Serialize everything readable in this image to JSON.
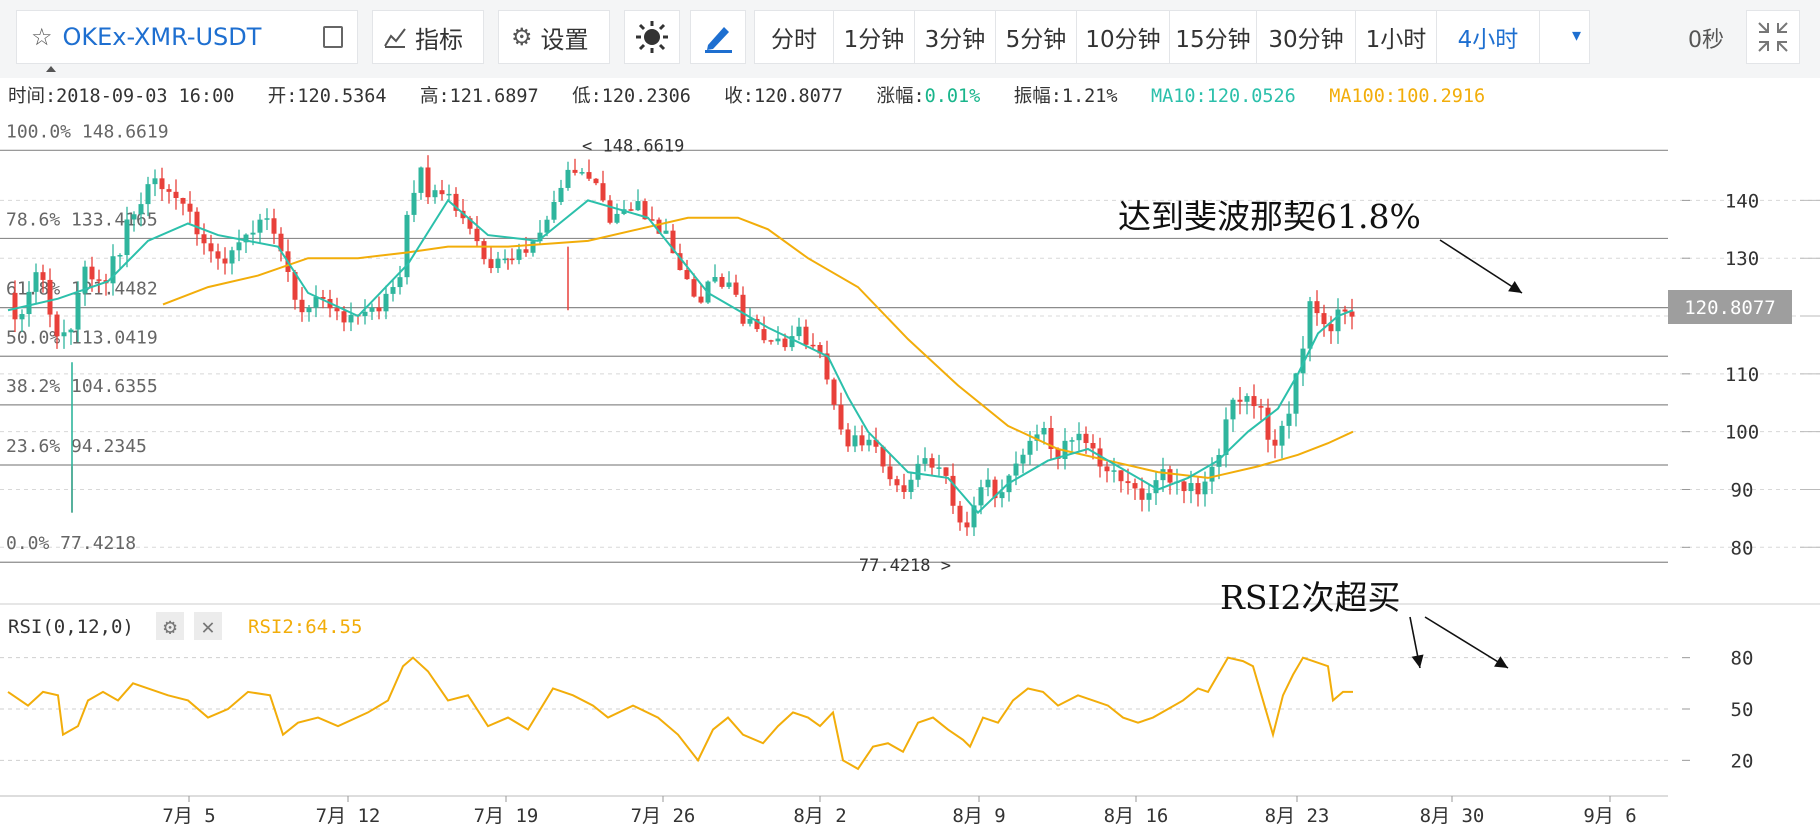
{
  "toolbar": {
    "symbol": "OKEx-XMR-USDT",
    "indicators_label": "指标",
    "settings_label": "设置",
    "intervals": [
      "分时",
      "1分钟",
      "3分钟",
      "5分钟",
      "10分钟",
      "15分钟",
      "30分钟",
      "1小时",
      "4小时"
    ],
    "active_interval": "4小时",
    "countdown": "0秒"
  },
  "info_bar": {
    "time_label": "时间:",
    "time": "2018-09-03 16:00",
    "open_label": "开:",
    "open": "120.5364",
    "high_label": "高:",
    "high": "121.6897",
    "low_label": "低:",
    "low": "120.2306",
    "close_label": "收:",
    "close": "120.8077",
    "change_label": "涨幅:",
    "change": "0.01%",
    "amplitude_label": "振幅:",
    "amplitude": "1.21%",
    "ma10_label": "MA10:",
    "ma10": "120.0526",
    "ma100_label": "MA100:",
    "ma100": "100.2916"
  },
  "rsi_panel": {
    "label": "RSI(0,12,0)",
    "value_label": "RSI2:64.55"
  },
  "colors": {
    "up": "#2fb59d",
    "down": "#e8403a",
    "ma10": "#2cc0ab",
    "ma100": "#f2ad0a",
    "rsi": "#f2ad0a",
    "accent": "#1e6fd0"
  },
  "chart_data": [
    {
      "type": "candlestick",
      "title": "OKEx-XMR-USDT 4小时",
      "x_tick_labels": [
        "7月 5",
        "7月 12",
        "7月 19",
        "7月 26",
        "8月 2",
        "8月 9",
        "8月 16",
        "8月 23",
        "8月 30",
        "9月 6"
      ],
      "y_tick_labels": [
        "80",
        "90",
        "100",
        "110",
        "120",
        "130",
        "140"
      ],
      "ylim": [
        74,
        152
      ],
      "fib_levels": [
        {
          "label": "100.0% 148.6619",
          "value": 148.6619
        },
        {
          "label": "78.6% 133.4165",
          "value": 133.4165
        },
        {
          "label": "61.8% 121.4482",
          "value": 121.4482
        },
        {
          "label": "50.0% 113.0419",
          "value": 113.0419
        },
        {
          "label": "38.2% 104.6355",
          "value": 104.6355
        },
        {
          "label": "23.6% 94.2345",
          "value": 94.2345
        },
        {
          "label": "0.0% 77.4218",
          "value": 77.4218
        }
      ],
      "high_marker": "< 148.6619",
      "low_marker": "77.4218 >",
      "last_price": "120.8077",
      "annotation": "达到斐波那契61.8%",
      "close_path": [
        [
          0,
          124
        ],
        [
          12,
          118
        ],
        [
          30,
          130
        ],
        [
          45,
          118
        ],
        [
          60,
          117
        ],
        [
          75,
          128
        ],
        [
          100,
          127
        ],
        [
          112,
          132
        ],
        [
          130,
          140
        ],
        [
          140,
          143
        ],
        [
          165,
          141
        ],
        [
          180,
          138
        ],
        [
          200,
          132
        ],
        [
          215,
          130
        ],
        [
          240,
          134
        ],
        [
          262,
          138
        ],
        [
          280,
          128
        ],
        [
          292,
          120
        ],
        [
          305,
          123
        ],
        [
          325,
          120
        ],
        [
          345,
          119
        ],
        [
          370,
          121
        ],
        [
          390,
          125
        ],
        [
          400,
          138
        ],
        [
          410,
          146
        ],
        [
          420,
          141
        ],
        [
          440,
          140
        ],
        [
          460,
          136
        ],
        [
          480,
          128
        ],
        [
          500,
          130
        ],
        [
          520,
          132
        ],
        [
          545,
          140
        ],
        [
          565,
          145
        ],
        [
          585,
          144
        ],
        [
          600,
          136
        ],
        [
          625,
          140
        ],
        [
          650,
          136
        ],
        [
          670,
          130
        ],
        [
          690,
          122
        ],
        [
          705,
          126
        ],
        [
          720,
          126
        ],
        [
          735,
          120
        ],
        [
          755,
          117
        ],
        [
          770,
          115
        ],
        [
          785,
          117
        ],
        [
          800,
          116
        ],
        [
          812,
          114
        ],
        [
          825,
          104
        ],
        [
          840,
          97
        ],
        [
          855,
          99
        ],
        [
          870,
          97
        ],
        [
          885,
          92
        ],
        [
          895,
          90
        ],
        [
          910,
          95
        ],
        [
          925,
          94
        ],
        [
          940,
          91
        ],
        [
          955,
          82
        ],
        [
          962,
          86
        ],
        [
          975,
          92
        ],
        [
          990,
          89
        ],
        [
          1005,
          95
        ],
        [
          1020,
          97
        ],
        [
          1035,
          101
        ],
        [
          1050,
          96
        ],
        [
          1070,
          99
        ],
        [
          1085,
          96
        ],
        [
          1100,
          94
        ],
        [
          1115,
          90
        ],
        [
          1130,
          89
        ],
        [
          1145,
          90
        ],
        [
          1160,
          93
        ],
        [
          1175,
          91
        ],
        [
          1190,
          90
        ],
        [
          1200,
          93
        ],
        [
          1210,
          97
        ],
        [
          1225,
          104
        ],
        [
          1240,
          107
        ],
        [
          1255,
          102
        ],
        [
          1265,
          97
        ],
        [
          1275,
          100
        ],
        [
          1285,
          106
        ],
        [
          1295,
          115
        ],
        [
          1302,
          122
        ],
        [
          1310,
          121
        ],
        [
          1320,
          118
        ],
        [
          1330,
          120
        ],
        [
          1345,
          121
        ]
      ],
      "ma10_path": [
        [
          0,
          121
        ],
        [
          50,
          123
        ],
        [
          100,
          126
        ],
        [
          140,
          133
        ],
        [
          180,
          136
        ],
        [
          210,
          134
        ],
        [
          240,
          133
        ],
        [
          270,
          132
        ],
        [
          300,
          124
        ],
        [
          350,
          120
        ],
        [
          400,
          129
        ],
        [
          440,
          140
        ],
        [
          480,
          134
        ],
        [
          530,
          133
        ],
        [
          580,
          140
        ],
        [
          640,
          137
        ],
        [
          700,
          124
        ],
        [
          760,
          118
        ],
        [
          820,
          113
        ],
        [
          840,
          106
        ],
        [
          860,
          100
        ],
        [
          900,
          93
        ],
        [
          940,
          92
        ],
        [
          970,
          86
        ],
        [
          1000,
          91
        ],
        [
          1040,
          95
        ],
        [
          1080,
          97
        ],
        [
          1120,
          93
        ],
        [
          1150,
          90
        ],
        [
          1180,
          92
        ],
        [
          1210,
          95
        ],
        [
          1240,
          100
        ],
        [
          1270,
          104
        ],
        [
          1290,
          110
        ],
        [
          1310,
          117
        ],
        [
          1330,
          120
        ],
        [
          1345,
          121
        ]
      ],
      "ma100_path": [
        [
          155,
          122
        ],
        [
          200,
          125
        ],
        [
          250,
          127
        ],
        [
          300,
          130
        ],
        [
          350,
          130
        ],
        [
          400,
          131
        ],
        [
          440,
          132
        ],
        [
          500,
          132
        ],
        [
          580,
          133
        ],
        [
          630,
          135
        ],
        [
          680,
          137
        ],
        [
          730,
          137
        ],
        [
          760,
          135
        ],
        [
          800,
          130
        ],
        [
          850,
          125
        ],
        [
          900,
          116
        ],
        [
          950,
          108
        ],
        [
          1000,
          101
        ],
        [
          1050,
          97
        ],
        [
          1100,
          95
        ],
        [
          1150,
          93
        ],
        [
          1200,
          92
        ],
        [
          1250,
          94
        ],
        [
          1290,
          96
        ],
        [
          1320,
          98
        ],
        [
          1345,
          100
        ]
      ]
    },
    {
      "type": "line",
      "title": "RSI(0,12,0)",
      "y_tick_labels": [
        "20",
        "50",
        "80"
      ],
      "ylim": [
        5,
        95
      ],
      "annotation": "RSI2次超买",
      "series": [
        {
          "name": "RSI2",
          "points": [
            [
              0,
              60
            ],
            [
              20,
              52
            ],
            [
              35,
              60
            ],
            [
              50,
              58
            ],
            [
              55,
              35
            ],
            [
              70,
              40
            ],
            [
              80,
              55
            ],
            [
              95,
              60
            ],
            [
              110,
              55
            ],
            [
              125,
              65
            ],
            [
              140,
              62
            ],
            [
              160,
              58
            ],
            [
              180,
              55
            ],
            [
              200,
              45
            ],
            [
              220,
              50
            ],
            [
              240,
              60
            ],
            [
              262,
              58
            ],
            [
              275,
              35
            ],
            [
              290,
              42
            ],
            [
              310,
              45
            ],
            [
              330,
              40
            ],
            [
              360,
              48
            ],
            [
              380,
              55
            ],
            [
              395,
              75
            ],
            [
              405,
              80
            ],
            [
              420,
              72
            ],
            [
              440,
              55
            ],
            [
              460,
              58
            ],
            [
              480,
              40
            ],
            [
              500,
              45
            ],
            [
              520,
              38
            ],
            [
              545,
              62
            ],
            [
              565,
              58
            ],
            [
              585,
              52
            ],
            [
              600,
              45
            ],
            [
              625,
              52
            ],
            [
              650,
              45
            ],
            [
              670,
              35
            ],
            [
              690,
              20
            ],
            [
              705,
              38
            ],
            [
              720,
              45
            ],
            [
              735,
              35
            ],
            [
              755,
              30
            ],
            [
              770,
              40
            ],
            [
              785,
              48
            ],
            [
              800,
              45
            ],
            [
              812,
              40
            ],
            [
              825,
              48
            ],
            [
              835,
              20
            ],
            [
              850,
              15
            ],
            [
              865,
              28
            ],
            [
              880,
              30
            ],
            [
              895,
              25
            ],
            [
              910,
              42
            ],
            [
              925,
              45
            ],
            [
              940,
              38
            ],
            [
              955,
              32
            ],
            [
              962,
              28
            ],
            [
              975,
              45
            ],
            [
              990,
              42
            ],
            [
              1005,
              55
            ],
            [
              1020,
              62
            ],
            [
              1035,
              60
            ],
            [
              1050,
              52
            ],
            [
              1070,
              58
            ],
            [
              1085,
              55
            ],
            [
              1100,
              52
            ],
            [
              1115,
              45
            ],
            [
              1130,
              42
            ],
            [
              1145,
              45
            ],
            [
              1160,
              50
            ],
            [
              1175,
              55
            ],
            [
              1190,
              62
            ],
            [
              1200,
              60
            ],
            [
              1210,
              70
            ],
            [
              1220,
              80
            ],
            [
              1235,
              78
            ],
            [
              1245,
              75
            ],
            [
              1255,
              55
            ],
            [
              1265,
              35
            ],
            [
              1275,
              58
            ],
            [
              1285,
              70
            ],
            [
              1295,
              80
            ],
            [
              1305,
              78
            ],
            [
              1320,
              75
            ],
            [
              1325,
              55
            ],
            [
              1335,
              60
            ],
            [
              1345,
              60
            ]
          ]
        }
      ]
    }
  ]
}
